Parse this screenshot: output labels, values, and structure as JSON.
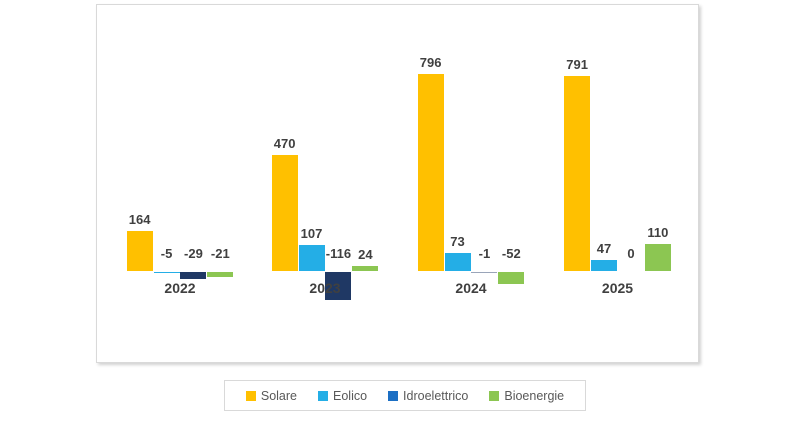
{
  "chart_data": {
    "type": "bar",
    "title": "",
    "categories": [
      "2022",
      "2023",
      "2024",
      "2025"
    ],
    "series": [
      {
        "name": "Solare",
        "color": "#FFC000",
        "values": [
          164,
          470,
          796,
          791
        ]
      },
      {
        "name": "Eolico",
        "color": "#24AEE6",
        "values": [
          -5,
          107,
          73,
          47
        ]
      },
      {
        "name": "Idroelettrico",
        "color": "#1F3864",
        "legend_color": "#1C6FC4",
        "values": [
          -29,
          -116,
          -1,
          0
        ]
      },
      {
        "name": "Bioenergie",
        "color": "#8CC652",
        "values": [
          -21,
          24,
          -52,
          110
        ]
      }
    ],
    "data_labels": true,
    "legend_position": "bottom",
    "value_axis_visible": false,
    "gridlines": false,
    "approx_value_range": [
      -150,
      850
    ]
  },
  "colors": {
    "data_label": "#404040",
    "category_label": "#404040",
    "legend_text": "#595959",
    "chart_border": "#D9D9D9",
    "background": "#FFFFFF"
  }
}
